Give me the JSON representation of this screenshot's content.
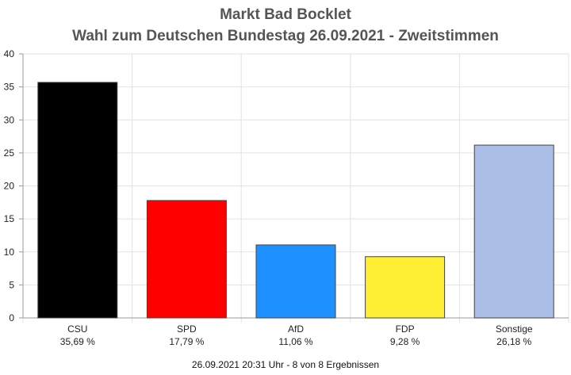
{
  "title_line1": "Markt Bad Bocklet",
  "title_line2": "Wahl zum Deutschen Bundestag 26.09.2021  - Zweitstimmen",
  "footer": "26.09.2021 20:31 Uhr - 8 von 8 Ergebnissen",
  "chart_data": {
    "type": "bar",
    "title": "Markt Bad Bocklet",
    "subtitle": "Wahl zum Deutschen Bundestag 26.09.2021  - Zweitstimmen",
    "categories": [
      "CSU",
      "SPD",
      "AfD",
      "FDP",
      "Sonstige"
    ],
    "value_labels": [
      "35,69 %",
      "17,79 %",
      "11,06 %",
      "9,28 %",
      "26,18 %"
    ],
    "values": [
      35.69,
      17.79,
      11.06,
      9.28,
      26.18
    ],
    "colors": [
      "#000000",
      "#ff0000",
      "#1e90ff",
      "#ffee33",
      "#aabde6"
    ],
    "ylim": [
      0,
      40
    ],
    "yticks": [
      0,
      5,
      10,
      15,
      20,
      25,
      30,
      35,
      40
    ],
    "grid": true,
    "legend": "none"
  }
}
